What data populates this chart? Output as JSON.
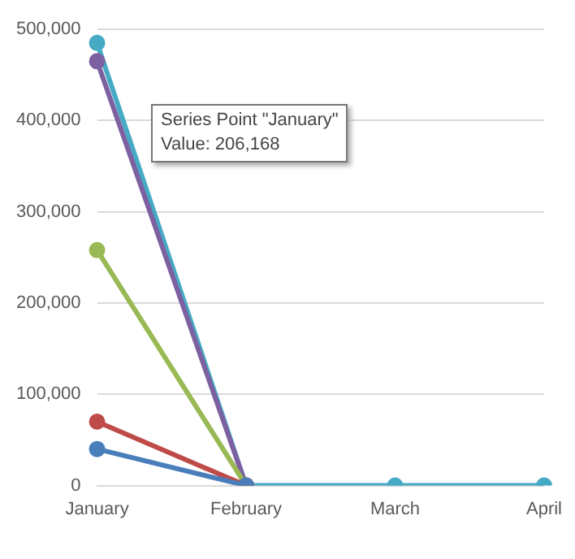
{
  "chart_data": {
    "type": "line",
    "categories": [
      "January",
      "February",
      "March",
      "April"
    ],
    "series": [
      {
        "color": "#4a7ebb",
        "values": [
          40000,
          0,
          null,
          null
        ]
      },
      {
        "color": "#be4b48",
        "values": [
          70000,
          0,
          null,
          null
        ]
      },
      {
        "color": "#98b954",
        "values": [
          258000,
          0,
          null,
          null
        ]
      },
      {
        "color": "#7d60a0",
        "values": [
          465000,
          0,
          null,
          null
        ]
      },
      {
        "color": "#46aac5",
        "values": [
          485000,
          0,
          0,
          0
        ]
      }
    ],
    "ylim": [
      0,
      500000
    ],
    "yticks": [
      {
        "value": 0,
        "label": "0"
      },
      {
        "value": 100000,
        "label": "100,000"
      },
      {
        "value": 200000,
        "label": "200,000"
      },
      {
        "value": 300000,
        "label": "300,000"
      },
      {
        "value": 400000,
        "label": "400,000"
      },
      {
        "value": 500000,
        "label": "500,000"
      }
    ],
    "grid": "y",
    "legend": false,
    "marker": "circle",
    "line_style": "solid",
    "annotations": [
      "Series Point \"January\"",
      "Value: 206,168"
    ]
  }
}
